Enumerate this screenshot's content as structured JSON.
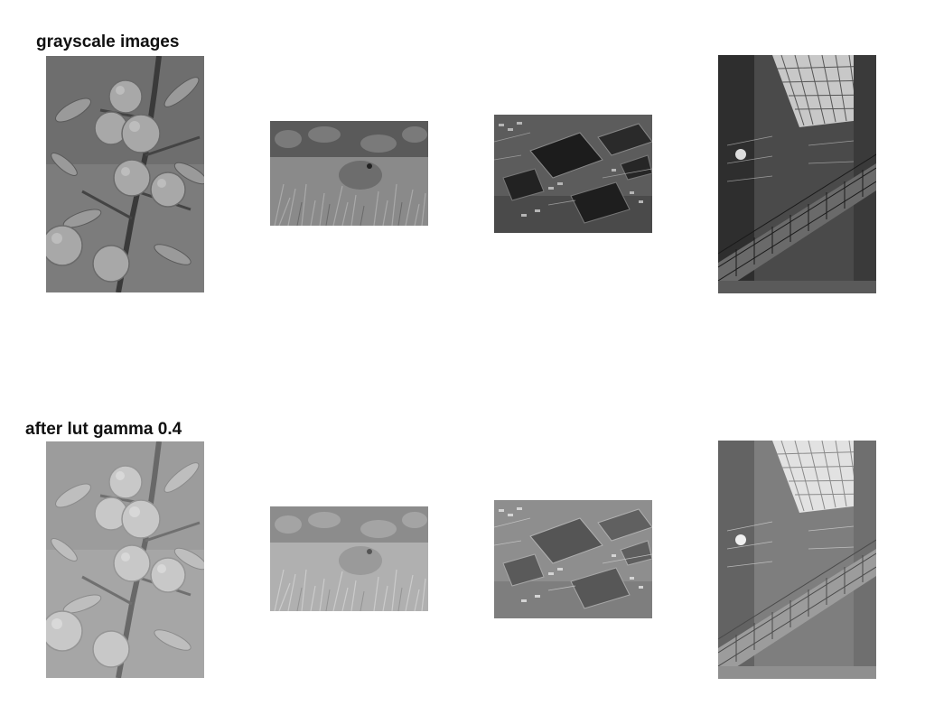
{
  "rows": [
    {
      "title": "grayscale images",
      "images": [
        {
          "name": "oranges-image",
          "subject": "oranges"
        },
        {
          "name": "rabbit-image",
          "subject": "rabbit"
        },
        {
          "name": "circuit-board-image",
          "subject": "circuit-board"
        },
        {
          "name": "staircase-image",
          "subject": "staircase"
        }
      ]
    },
    {
      "title": "after lut gamma 0.4",
      "images": [
        {
          "name": "oranges-image-gamma",
          "subject": "oranges"
        },
        {
          "name": "rabbit-image-gamma",
          "subject": "rabbit"
        },
        {
          "name": "circuit-board-image-gamma",
          "subject": "circuit-board"
        },
        {
          "name": "staircase-image-gamma",
          "subject": "staircase"
        }
      ]
    }
  ]
}
